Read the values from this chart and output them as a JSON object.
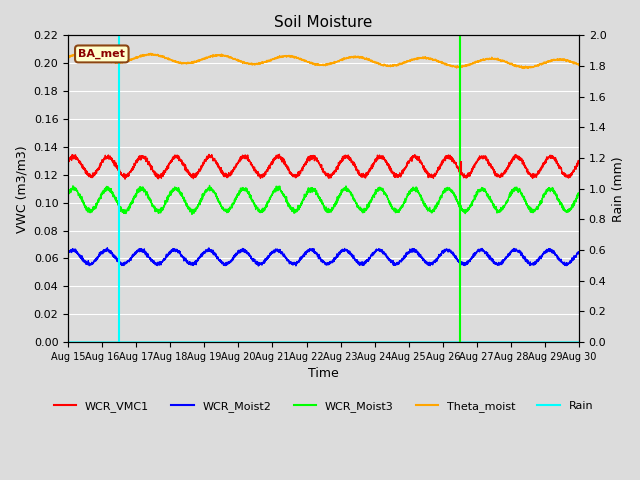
{
  "title": "Soil Moisture",
  "xlabel": "Time",
  "ylabel_left": "VWC (m3/m3)",
  "ylabel_right": "Rain (mm)",
  "ylim_left": [
    0.0,
    0.22
  ],
  "ylim_right": [
    0.0,
    2.0
  ],
  "xlim": [
    0,
    15
  ],
  "background_color": "#dcdcdc",
  "plot_bg_color": "#dcdcdc",
  "grid_color": "white",
  "annotation_label": "BA_met",
  "annotation_bbox": {
    "boxstyle": "round,pad=0.3",
    "facecolor": "#ffffcc",
    "edgecolor": "#8B4513",
    "linewidth": 1.5
  },
  "annotation_text_color": "#8B0000",
  "vmc1_base": 0.126,
  "vmc1_amp": 0.007,
  "vmc1_period": 1.0,
  "moist2_base": 0.061,
  "moist2_amp": 0.005,
  "moist2_period": 1.0,
  "moist3_base": 0.102,
  "moist3_amp": 0.008,
  "moist3_period": 1.0,
  "theta_base": 0.204,
  "theta_amp": 0.003,
  "theta_period": 2.0,
  "rain_event1_x": 1.5,
  "rain_event2_x": 11.5,
  "tick_labels": [
    "Aug 15",
    "Aug 16",
    "Aug 17",
    "Aug 18",
    "Aug 19",
    "Aug 20",
    "Aug 21",
    "Aug 22",
    "Aug 23",
    "Aug 24",
    "Aug 25",
    "Aug 26",
    "Aug 27",
    "Aug 28",
    "Aug 29",
    "Aug 30"
  ],
  "legend_entries": [
    "WCR_VMC1",
    "WCR_Moist2",
    "WCR_Moist3",
    "Theta_moist",
    "Rain"
  ],
  "legend_colors": [
    "red",
    "blue",
    "lime",
    "orange",
    "cyan"
  ],
  "linewidth": 1.0,
  "figwidth": 6.4,
  "figheight": 4.8,
  "dpi": 100
}
